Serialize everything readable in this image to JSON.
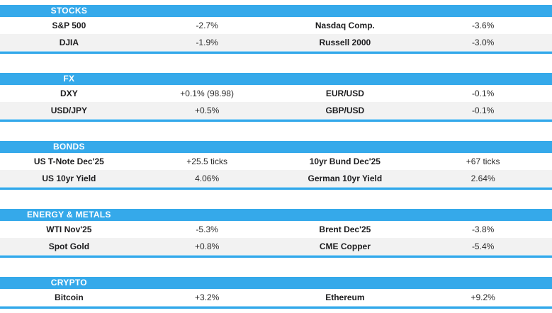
{
  "colors": {
    "accent_blue": "#35A9EA",
    "alt_row_gray": "#F2F2F2",
    "header_text": "#FFFFFF",
    "body_text": "#222222"
  },
  "sections": [
    {
      "title": "STOCKS",
      "rows": [
        {
          "label_left": "S&P 500",
          "value_left": "-2.7%",
          "label_right": "Nasdaq Comp.",
          "value_right": "-3.6%"
        },
        {
          "label_left": "DJIA",
          "value_left": "-1.9%",
          "label_right": "Russell 2000",
          "value_right": "-3.0%"
        }
      ]
    },
    {
      "title": "FX",
      "rows": [
        {
          "label_left": "DXY",
          "value_left": "+0.1% (98.98)",
          "label_right": "EUR/USD",
          "value_right": "-0.1%"
        },
        {
          "label_left": "USD/JPY",
          "value_left": "+0.5%",
          "label_right": "GBP/USD",
          "value_right": "-0.1%"
        }
      ]
    },
    {
      "title": "BONDS",
      "rows": [
        {
          "label_left": "US T-Note Dec'25",
          "value_left": "+25.5 ticks",
          "label_right": "10yr Bund Dec'25",
          "value_right": "+67 ticks"
        },
        {
          "label_left": "US 10yr Yield",
          "value_left": "4.06%",
          "label_right": "German 10yr Yield",
          "value_right": "2.64%"
        }
      ]
    },
    {
      "title": "ENERGY & METALS",
      "rows": [
        {
          "label_left": "WTI Nov'25",
          "value_left": "-5.3%",
          "label_right": "Brent Dec'25",
          "value_right": "-3.8%"
        },
        {
          "label_left": "Spot Gold",
          "value_left": "+0.8%",
          "label_right": "CME Copper",
          "value_right": "-5.4%"
        }
      ]
    },
    {
      "title": "CRYPTO",
      "rows": [
        {
          "label_left": "Bitcoin",
          "value_left": "+3.2%",
          "label_right": "Ethereum",
          "value_right": "+9.2%"
        }
      ]
    }
  ]
}
